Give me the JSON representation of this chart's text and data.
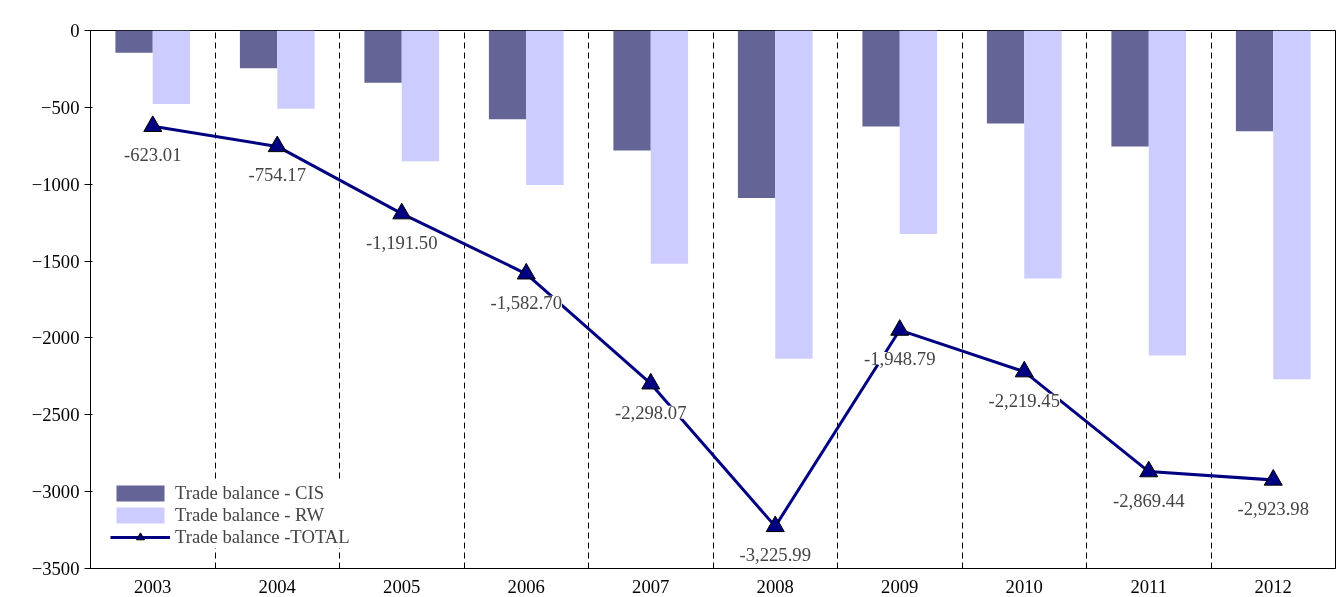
{
  "chart_data": {
    "type": "bar",
    "categories": [
      "2003",
      "2004",
      "2005",
      "2006",
      "2007",
      "2008",
      "2009",
      "2010",
      "2011",
      "2012"
    ],
    "series": [
      {
        "name": "Trade balance - CIS",
        "color": "#646496",
        "values": [
          -145,
          -245,
          -340,
          -578,
          -780,
          -1090,
          -625,
          -605,
          -755,
          -655
        ]
      },
      {
        "name": "Trade balance - RW",
        "color": "#ccccff",
        "values": [
          -478,
          -509,
          -851,
          -1005,
          -1518,
          -2136,
          -1324,
          -1614,
          -2114,
          -2269
        ]
      },
      {
        "name": "Trade balance -TOTAL",
        "type": "line",
        "color": "#000080",
        "marker": "triangle",
        "values": [
          -623.01,
          -754.17,
          -1191.5,
          -1582.7,
          -2298.07,
          -3225.99,
          -1948.79,
          -2219.45,
          -2869.44,
          -2923.98
        ],
        "value_labels": [
          "-623.01",
          "-754.17",
          "-1,191.50",
          "-1,582.70",
          "-2,298.07",
          "-3,225.99",
          "-1,948.79",
          "-2,219.45",
          "-2,869.44",
          "-2,923.98"
        ]
      }
    ],
    "ylim": [
      -3500,
      0
    ],
    "yticks": [
      -3500,
      -3000,
      -2500,
      -2000,
      -1500,
      -1000,
      -500,
      0
    ],
    "grid": "x",
    "legend": "bottom left"
  }
}
